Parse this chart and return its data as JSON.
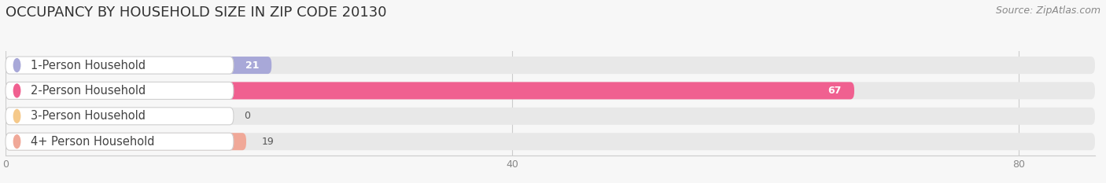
{
  "title": "OCCUPANCY BY HOUSEHOLD SIZE IN ZIP CODE 20130",
  "source": "Source: ZipAtlas.com",
  "categories": [
    "1-Person Household",
    "2-Person Household",
    "3-Person Household",
    "4+ Person Household"
  ],
  "values": [
    21,
    67,
    0,
    19
  ],
  "bar_colors": [
    "#a8a8d8",
    "#f06090",
    "#f5c98a",
    "#f0a898"
  ],
  "bar_bg_color": "#e8e8e8",
  "xlim": [
    0,
    86
  ],
  "xticks": [
    0,
    40,
    80
  ],
  "title_fontsize": 13,
  "source_fontsize": 9,
  "label_fontsize": 10.5,
  "value_fontsize": 9,
  "bar_height": 0.68,
  "background_color": "#f7f7f7"
}
